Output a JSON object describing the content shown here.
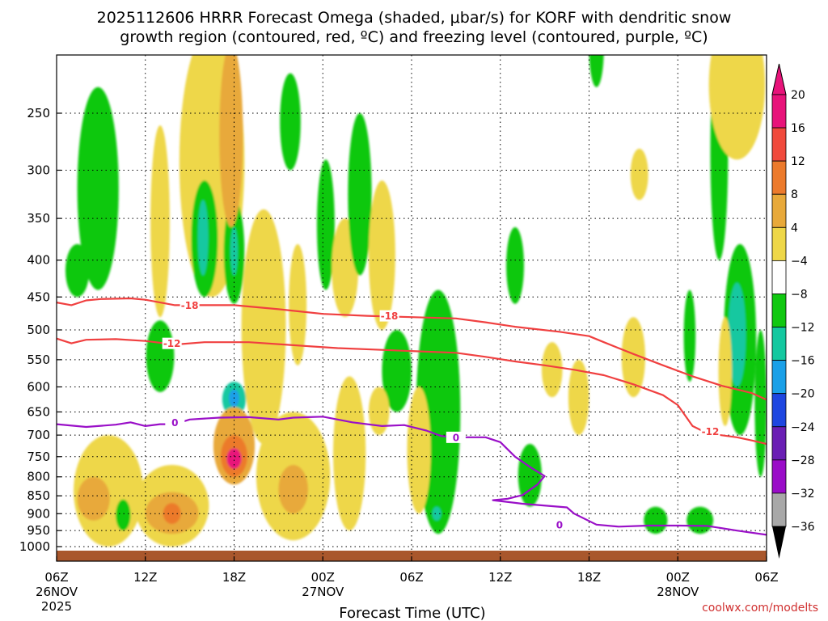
{
  "chart_data": {
    "type": "heatmap",
    "title_line1": "2025112606 HRRR Forecast Omega (shaded, μbar/s) for KORF with dendritic snow",
    "title_line2": "growth region (contoured, red, ºC) and freezing level (contoured, purple, ºC)",
    "xlabel": "Forecast Time (UTC)",
    "credit": "coolwx.com/modelts",
    "x_range_hours": [
      0,
      48
    ],
    "y_range_mb": [
      200,
      1020
    ],
    "y_scale": "log-pressure",
    "grid": true,
    "x_ticks": [
      {
        "h": 0,
        "label": "06Z",
        "date": "26NOV",
        "year": "2025"
      },
      {
        "h": 6,
        "label": "12Z"
      },
      {
        "h": 12,
        "label": "18Z"
      },
      {
        "h": 18,
        "label": "00Z",
        "date": "27NOV"
      },
      {
        "h": 24,
        "label": "06Z"
      },
      {
        "h": 30,
        "label": "12Z"
      },
      {
        "h": 36,
        "label": "18Z"
      },
      {
        "h": 42,
        "label": "00Z",
        "date": "28NOV"
      },
      {
        "h": 48,
        "label": "06Z"
      }
    ],
    "y_ticks": [
      250,
      300,
      350,
      400,
      450,
      500,
      550,
      600,
      650,
      700,
      750,
      800,
      850,
      900,
      950,
      1000
    ],
    "colorbar": {
      "levels": [
        "20",
        "16",
        "12",
        "8",
        "4",
        "−4",
        "−8",
        "−12",
        "−16",
        "−20",
        "−24",
        "−28",
        "−32",
        "−36"
      ],
      "colors": [
        "#e8137a",
        "#f04a3c",
        "#ec7a2c",
        "#e8a93a",
        "#eed748",
        "#ffffff",
        "#11c811",
        "#14c8a0",
        "#1aa0e8",
        "#1e46e0",
        "#6a1eb4",
        "#9a0cc8",
        "#a8a8a8"
      ],
      "top_arrow": "#e8137a",
      "bottom_arrow": "#000000"
    },
    "series": [
      {
        "name": "-18",
        "color": "#f04040",
        "points": [
          [
            0,
            458
          ],
          [
            1,
            462
          ],
          [
            2,
            455
          ],
          [
            3,
            453
          ],
          [
            5,
            452
          ],
          [
            6,
            454
          ],
          [
            8,
            462
          ],
          [
            12,
            462
          ],
          [
            15,
            468
          ],
          [
            18,
            475
          ],
          [
            21,
            478
          ],
          [
            24,
            480
          ],
          [
            27,
            482
          ],
          [
            29,
            488
          ],
          [
            31,
            495
          ],
          [
            34,
            503
          ],
          [
            36,
            510
          ],
          [
            37,
            520
          ],
          [
            39,
            540
          ],
          [
            41,
            560
          ],
          [
            43,
            580
          ],
          [
            45,
            598
          ],
          [
            47,
            612
          ],
          [
            48,
            625
          ]
        ],
        "labels": [
          [
            9,
            462
          ],
          [
            22.5,
            478
          ]
        ]
      },
      {
        "name": "-12",
        "color": "#f04040",
        "points": [
          [
            0,
            514
          ],
          [
            1,
            522
          ],
          [
            2,
            516
          ],
          [
            4,
            515
          ],
          [
            6,
            518
          ],
          [
            8,
            524
          ],
          [
            10,
            520
          ],
          [
            13,
            520
          ],
          [
            16,
            525
          ],
          [
            19,
            530
          ],
          [
            22,
            533
          ],
          [
            25,
            536
          ],
          [
            27,
            538
          ],
          [
            29,
            545
          ],
          [
            31,
            553
          ],
          [
            33,
            560
          ],
          [
            35,
            568
          ],
          [
            37,
            578
          ],
          [
            39,
            595
          ],
          [
            41,
            616
          ],
          [
            42,
            636
          ],
          [
            43,
            680
          ],
          [
            44,
            696
          ],
          [
            46,
            705
          ],
          [
            47,
            712
          ],
          [
            48,
            720
          ]
        ],
        "labels": [
          [
            7.8,
            522
          ],
          [
            44.2,
            692
          ]
        ]
      },
      {
        "name": "0",
        "color": "#9a10c8",
        "points": [
          [
            0,
            676
          ],
          [
            2,
            682
          ],
          [
            4,
            677
          ],
          [
            5,
            672
          ],
          [
            6,
            680
          ],
          [
            7,
            676
          ],
          [
            8,
            676
          ],
          [
            9,
            666
          ],
          [
            11,
            662
          ],
          [
            13,
            661
          ],
          [
            15,
            666
          ],
          [
            16,
            662
          ],
          [
            18,
            660
          ],
          [
            20,
            672
          ],
          [
            22,
            680
          ],
          [
            23.5,
            678
          ],
          [
            25,
            690
          ],
          [
            26,
            702
          ],
          [
            27,
            705
          ],
          [
            29,
            705
          ],
          [
            30,
            716
          ],
          [
            31,
            750
          ],
          [
            32,
            775
          ],
          [
            33,
            798
          ],
          [
            32.5,
            820
          ],
          [
            31.5,
            848
          ],
          [
            30.5,
            858
          ],
          [
            29.5,
            862
          ],
          [
            31.5,
            872
          ],
          [
            34.5,
            882
          ],
          [
            35,
            900
          ],
          [
            36.5,
            932
          ],
          [
            38,
            938
          ],
          [
            40,
            935
          ],
          [
            42,
            935
          ],
          [
            44,
            936
          ],
          [
            46,
            950
          ],
          [
            48,
            963
          ]
        ],
        "labels": [
          [
            8,
            672
          ],
          [
            27,
            705
          ],
          [
            34,
            932
          ]
        ]
      }
    ],
    "shaded_cells": [
      {
        "h": 2.8,
        "h0": 1.4,
        "h1": 4.2,
        "p0": 230,
        "p1": 440,
        "v": -6
      },
      {
        "h": 1.4,
        "h0": 0.6,
        "h1": 2.2,
        "p0": 380,
        "p1": 450,
        "v": -6
      },
      {
        "h": 7.0,
        "h0": 6.1,
        "h1": 8.0,
        "p0": 485,
        "p1": 610,
        "v": -6
      },
      {
        "h": 10.5,
        "h0": 8.2,
        "h1": 12.6,
        "p0": 190,
        "p1": 450,
        "v": 6
      },
      {
        "h": 10.0,
        "h0": 9.2,
        "h1": 11.0,
        "p0": 310,
        "p1": 450,
        "v": -6
      },
      {
        "h": 9.9,
        "h0": 9.6,
        "h1": 10.3,
        "p0": 330,
        "p1": 420,
        "v": -10
      },
      {
        "h": 12.0,
        "h0": 11.4,
        "h1": 12.8,
        "p0": 330,
        "p1": 460,
        "v": -6
      },
      {
        "h": 12.0,
        "h0": 11.8,
        "h1": 12.3,
        "p0": 360,
        "p1": 420,
        "v": -10
      },
      {
        "h": 11.8,
        "h0": 11.0,
        "h1": 12.6,
        "p0": 200,
        "p1": 360,
        "v": 10
      },
      {
        "h": 7.0,
        "h0": 6.3,
        "h1": 7.6,
        "p0": 260,
        "p1": 480,
        "v": 6
      },
      {
        "h": 14.0,
        "h0": 12.6,
        "h1": 15.6,
        "p0": 340,
        "p1": 720,
        "v": 6
      },
      {
        "h": 15.8,
        "h0": 15.2,
        "h1": 16.6,
        "p0": 220,
        "p1": 300,
        "v": -6
      },
      {
        "h": 16.3,
        "h0": 15.6,
        "h1": 16.8,
        "p0": 380,
        "p1": 560,
        "v": 6
      },
      {
        "h": 18.2,
        "h0": 17.6,
        "h1": 18.8,
        "p0": 290,
        "p1": 440,
        "v": -6
      },
      {
        "h": 19.5,
        "h0": 18.6,
        "h1": 20.4,
        "p0": 350,
        "p1": 480,
        "v": 6
      },
      {
        "h": 20.5,
        "h0": 19.8,
        "h1": 21.4,
        "p0": 250,
        "p1": 420,
        "v": -6
      },
      {
        "h": 22.0,
        "h0": 21.2,
        "h1": 23.0,
        "p0": 310,
        "p1": 500,
        "v": 6
      },
      {
        "h": 12.0,
        "h0": 11.2,
        "h1": 12.8,
        "p0": 590,
        "p1": 660,
        "v": -8
      },
      {
        "h": 12.0,
        "h0": 11.6,
        "h1": 12.3,
        "p0": 605,
        "p1": 640,
        "v": -14
      },
      {
        "h": 12.0,
        "h0": 10.6,
        "h1": 13.4,
        "p0": 640,
        "p1": 820,
        "v": 8
      },
      {
        "h": 12.0,
        "h0": 11.0,
        "h1": 12.8,
        "p0": 700,
        "p1": 800,
        "v": 14
      },
      {
        "h": 12.0,
        "h0": 11.4,
        "h1": 12.4,
        "p0": 730,
        "p1": 780,
        "v": 20
      },
      {
        "h": 3.5,
        "h0": 0.8,
        "h1": 5.5,
        "p0": 700,
        "p1": 1000,
        "v": 6
      },
      {
        "h": 2.5,
        "h0": 1.4,
        "h1": 3.6,
        "p0": 800,
        "p1": 920,
        "v": 10
      },
      {
        "h": 7.8,
        "h0": 5.2,
        "h1": 10.2,
        "p0": 770,
        "p1": 1000,
        "v": 6
      },
      {
        "h": 7.8,
        "h0": 6.2,
        "h1": 9.8,
        "p0": 840,
        "p1": 960,
        "v": 10
      },
      {
        "h": 7.8,
        "h0": 7.2,
        "h1": 8.4,
        "p0": 870,
        "p1": 930,
        "v": 14
      },
      {
        "h": 4.5,
        "h0": 4.0,
        "h1": 5.0,
        "p0": 860,
        "p1": 950,
        "v": -6
      },
      {
        "h": 16.0,
        "h0": 13.8,
        "h1": 18.8,
        "p0": 650,
        "p1": 980,
        "v": 6
      },
      {
        "h": 16.0,
        "h0": 15.0,
        "h1": 17.0,
        "p0": 770,
        "p1": 900,
        "v": 10
      },
      {
        "h": 19.8,
        "h0": 18.8,
        "h1": 21.0,
        "p0": 580,
        "p1": 950,
        "v": 6
      },
      {
        "h": 23.0,
        "h0": 22.0,
        "h1": 24.0,
        "p0": 500,
        "p1": 650,
        "v": -6
      },
      {
        "h": 25.8,
        "h0": 24.2,
        "h1": 27.2,
        "p0": 440,
        "p1": 960,
        "v": -6
      },
      {
        "h": 25.7,
        "h0": 25.4,
        "h1": 26.0,
        "p0": 880,
        "p1": 920,
        "v": -10
      },
      {
        "h": 24.5,
        "h0": 23.8,
        "h1": 25.4,
        "p0": 600,
        "p1": 900,
        "v": 6
      },
      {
        "h": 21.8,
        "h0": 21.2,
        "h1": 22.6,
        "p0": 600,
        "p1": 700,
        "v": 6
      },
      {
        "h": 31.0,
        "h0": 30.4,
        "h1": 31.6,
        "p0": 360,
        "p1": 460,
        "v": -6
      },
      {
        "h": 32.0,
        "h0": 31.2,
        "h1": 32.8,
        "p0": 720,
        "p1": 880,
        "v": -6
      },
      {
        "h": 33.5,
        "h0": 32.8,
        "h1": 34.2,
        "p0": 520,
        "p1": 620,
        "v": 6
      },
      {
        "h": 35.3,
        "h0": 34.6,
        "h1": 36.0,
        "p0": 550,
        "p1": 700,
        "v": 6
      },
      {
        "h": 36.5,
        "h0": 36.0,
        "h1": 37.0,
        "p0": 180,
        "p1": 230,
        "v": -6
      },
      {
        "h": 39.4,
        "h0": 38.8,
        "h1": 40.0,
        "p0": 280,
        "p1": 330,
        "v": 6
      },
      {
        "h": 39.0,
        "h0": 38.4,
        "h1": 40.0,
        "p0": 480,
        "p1": 620,
        "v": 6
      },
      {
        "h": 40.5,
        "h0": 39.6,
        "h1": 41.2,
        "p0": 880,
        "p1": 960,
        "v": -6
      },
      {
        "h": 43.5,
        "h0": 42.6,
        "h1": 44.4,
        "p0": 880,
        "p1": 960,
        "v": -6
      },
      {
        "h": 44.8,
        "h0": 44.2,
        "h1": 45.4,
        "p0": 200,
        "p1": 400,
        "v": -6
      },
      {
        "h": 46.0,
        "h0": 44.2,
        "h1": 48.0,
        "p0": 180,
        "p1": 290,
        "v": 6
      },
      {
        "h": 46.2,
        "h0": 45.2,
        "h1": 47.4,
        "p0": 380,
        "p1": 700,
        "v": -6
      },
      {
        "h": 46.0,
        "h0": 45.6,
        "h1": 46.8,
        "p0": 430,
        "p1": 600,
        "v": -10
      },
      {
        "h": 45.2,
        "h0": 44.8,
        "h1": 45.7,
        "p0": 480,
        "p1": 680,
        "v": 6
      },
      {
        "h": 42.8,
        "h0": 42.4,
        "h1": 43.2,
        "p0": 440,
        "p1": 590,
        "v": -6
      },
      {
        "h": 47.6,
        "h0": 47.2,
        "h1": 48.0,
        "p0": 500,
        "p1": 800,
        "v": -6
      }
    ]
  }
}
